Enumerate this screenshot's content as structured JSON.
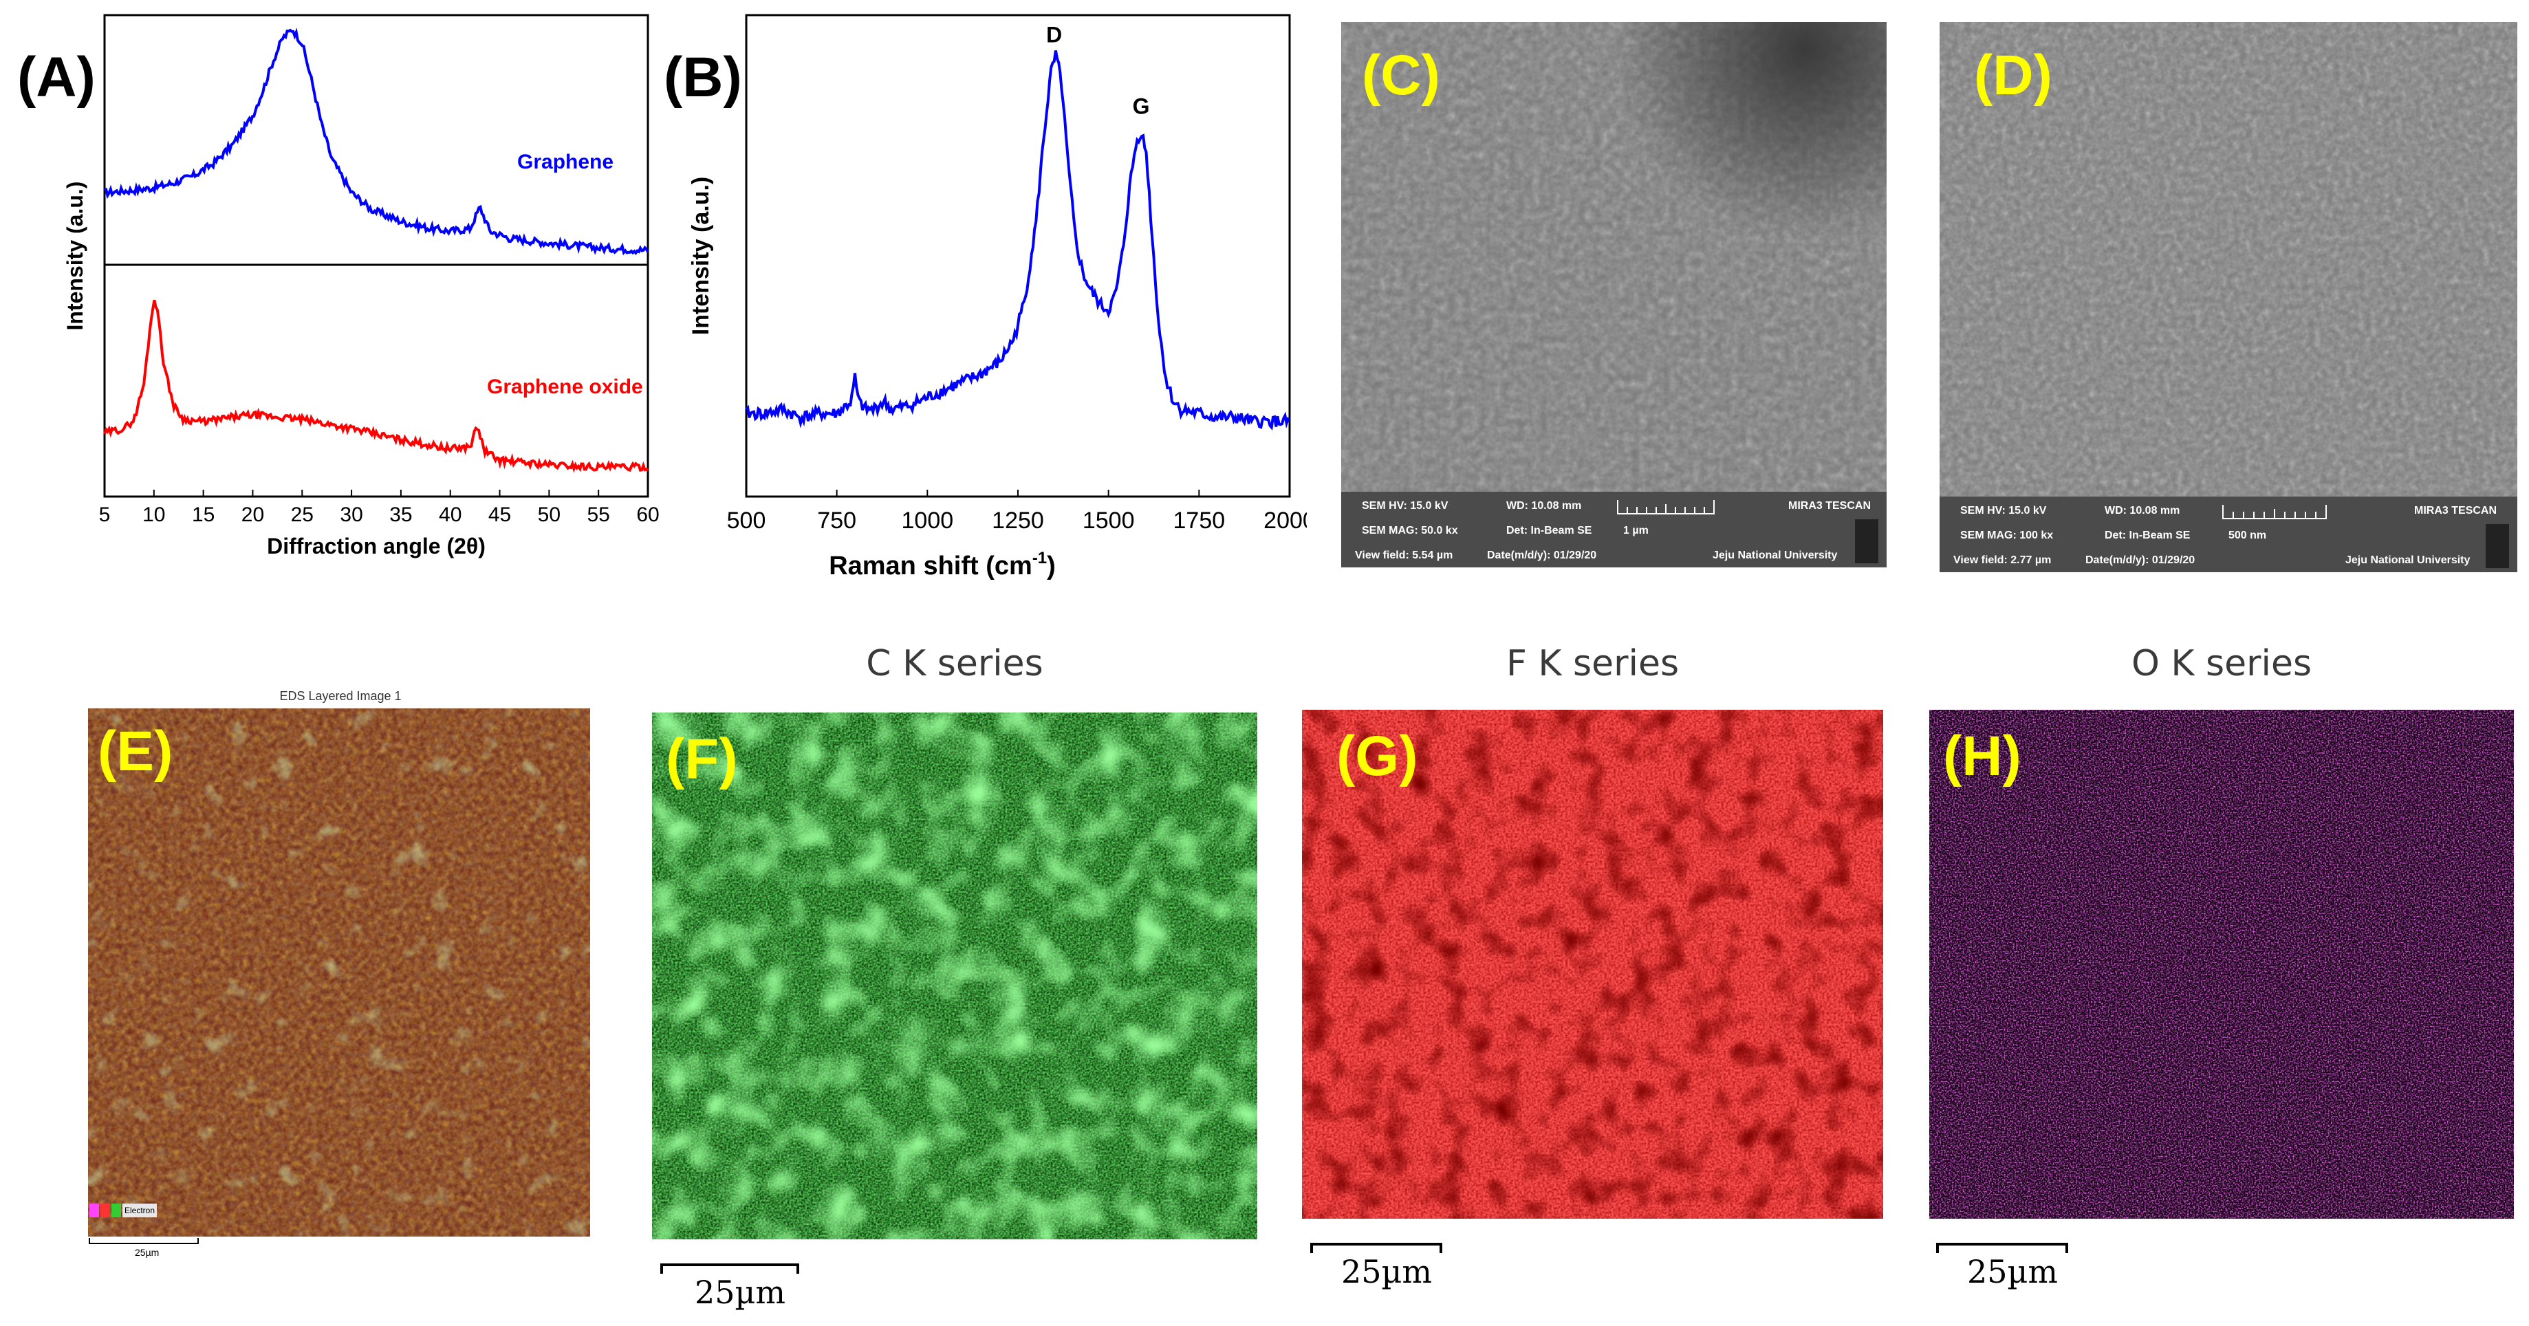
{
  "panels": {
    "A": {
      "label": "(A)"
    },
    "B": {
      "label": "(B)"
    },
    "C": {
      "label": "(C)"
    },
    "D": {
      "label": "(D)"
    },
    "E": {
      "label": "(E)"
    },
    "F": {
      "label": "(F)"
    },
    "G": {
      "label": "(G)"
    },
    "H": {
      "label": "(H)"
    }
  },
  "chart_data": [
    {
      "type": "line",
      "panel": "A",
      "title": "",
      "xlabel": "Diffraction angle (2θ)",
      "ylabel": "Intensity (a.u.)",
      "xlim": [
        5,
        60
      ],
      "xticks": [
        "5",
        "10",
        "15",
        "20",
        "25",
        "30",
        "35",
        "40",
        "45",
        "50",
        "55",
        "60"
      ],
      "series": [
        {
          "name": "Graphene",
          "color": "#0000ff",
          "x": [
            5,
            8,
            10,
            12,
            14,
            16,
            18,
            20,
            21,
            22,
            23,
            24,
            25,
            26,
            27,
            28,
            30,
            32,
            35,
            38,
            40,
            42,
            43,
            44,
            46,
            50,
            55,
            60
          ],
          "y": [
            0.3,
            0.31,
            0.32,
            0.34,
            0.37,
            0.42,
            0.5,
            0.62,
            0.72,
            0.84,
            0.94,
            0.98,
            0.92,
            0.76,
            0.58,
            0.44,
            0.3,
            0.23,
            0.18,
            0.15,
            0.14,
            0.15,
            0.24,
            0.14,
            0.11,
            0.09,
            0.07,
            0.06
          ]
        },
        {
          "name": "Graphene oxide",
          "color": "#ff0000",
          "x": [
            5,
            7,
            8,
            9,
            9.5,
            10,
            10.5,
            11,
            12,
            13,
            15,
            18,
            20,
            25,
            30,
            35,
            40,
            42,
            42.7,
            43.5,
            45,
            50,
            55,
            60
          ],
          "y": [
            0.28,
            0.3,
            0.34,
            0.5,
            0.7,
            0.88,
            0.78,
            0.58,
            0.4,
            0.34,
            0.33,
            0.35,
            0.36,
            0.34,
            0.3,
            0.25,
            0.21,
            0.22,
            0.31,
            0.2,
            0.16,
            0.14,
            0.13,
            0.13
          ]
        }
      ]
    },
    {
      "type": "line",
      "panel": "B",
      "title": "",
      "xlabel": "Raman shift (cm",
      "xlabel_sup": "-1",
      "xlabel_end": ")",
      "ylabel": "Intensity (a.u.)",
      "xlim": [
        500,
        2000
      ],
      "xticks": [
        "500",
        "750",
        "1000",
        "1250",
        "1500",
        "1750",
        "2000"
      ],
      "annotations": [
        {
          "text": "D",
          "x": 1350
        },
        {
          "text": "G",
          "x": 1590
        }
      ],
      "series": [
        {
          "name": "",
          "color": "#0000ff",
          "x": [
            500,
            550,
            600,
            650,
            700,
            750,
            790,
            800,
            810,
            830,
            850,
            880,
            900,
            950,
            1000,
            1050,
            1100,
            1150,
            1200,
            1240,
            1270,
            1300,
            1320,
            1340,
            1355,
            1370,
            1390,
            1410,
            1430,
            1450,
            1480,
            1500,
            1520,
            1540,
            1560,
            1575,
            1590,
            1605,
            1620,
            1640,
            1660,
            1680,
            1700,
            1750,
            1800,
            1850,
            1900,
            1950,
            2000
          ],
          "y": [
            0.07,
            0.07,
            0.08,
            0.06,
            0.07,
            0.07,
            0.1,
            0.16,
            0.1,
            0.08,
            0.08,
            0.1,
            0.08,
            0.09,
            0.11,
            0.13,
            0.15,
            0.17,
            0.2,
            0.26,
            0.36,
            0.55,
            0.75,
            0.92,
            0.97,
            0.9,
            0.68,
            0.5,
            0.42,
            0.38,
            0.34,
            0.33,
            0.37,
            0.48,
            0.65,
            0.74,
            0.78,
            0.72,
            0.52,
            0.28,
            0.15,
            0.1,
            0.08,
            0.07,
            0.06,
            0.06,
            0.05,
            0.05,
            0.05
          ]
        }
      ]
    }
  ],
  "sem_c": {
    "hv": "SEM HV: 15.0 kV",
    "wd": "WD: 10.08 mm",
    "brand": "MIRA3 TESCAN",
    "mag": "SEM MAG: 50.0 kx",
    "det": "Det: In-Beam SE",
    "scale": "1 µm",
    "field": "View field: 5.54 µm",
    "date": "Date(m/d/y): 01/29/20",
    "univ": "Jeju National University"
  },
  "sem_d": {
    "hv": "SEM HV: 15.0 kV",
    "wd": "WD: 10.08 mm",
    "brand": "MIRA3 TESCAN",
    "mag": "SEM MAG: 100 kx",
    "det": "Det: In-Beam SE",
    "scale": "500 nm",
    "field": "View field: 2.77 µm",
    "date": "Date(m/d/y): 01/29/20",
    "univ": "Jeju National University"
  },
  "eds": {
    "layered_title": "EDS Layered Image 1",
    "legend_item": "Electron",
    "scale_e": "25µm",
    "series_c": "C K series",
    "series_f": "F K series",
    "series_o": "O K series",
    "scale_f": "25µm",
    "scale_g": "25µm",
    "scale_h": "25µm"
  },
  "colors": {
    "graphene": "#0000ff",
    "graphene_oxide": "#ff0000",
    "c_map": "#1db31d",
    "f_map": "#ee1010",
    "o_map": "#d21bd2",
    "label_yellow": "#ffff00"
  }
}
